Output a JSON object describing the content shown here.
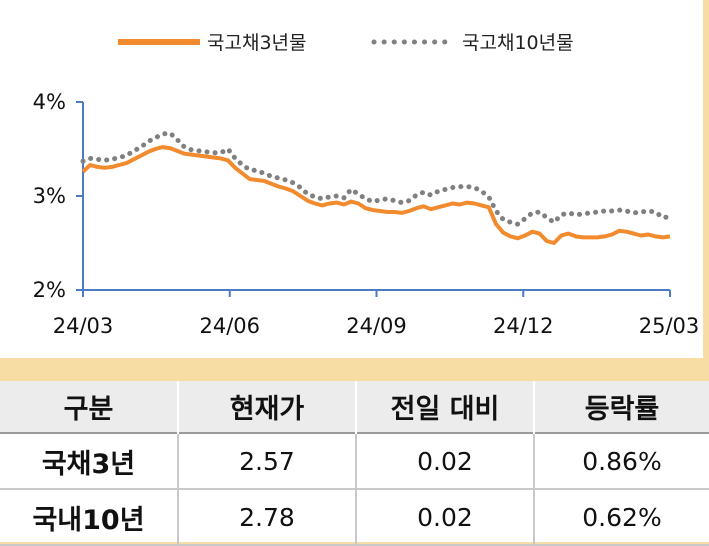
{
  "chart_data": {
    "type": "line",
    "x_ticks": [
      "24/03",
      "24/06",
      "24/09",
      "24/12",
      "25/03"
    ],
    "y_ticks": [
      "4%",
      "3%",
      "2%"
    ],
    "ylim": [
      2,
      4
    ],
    "legend_position": "top",
    "series": [
      {
        "name": "국고채3년물",
        "style": "solid",
        "color": "#f28a2e",
        "values": [
          3.26,
          3.33,
          3.31,
          3.3,
          3.31,
          3.33,
          3.35,
          3.39,
          3.43,
          3.47,
          3.5,
          3.52,
          3.51,
          3.48,
          3.45,
          3.44,
          3.43,
          3.42,
          3.41,
          3.4,
          3.38,
          3.3,
          3.24,
          3.18,
          3.17,
          3.16,
          3.13,
          3.1,
          3.08,
          3.05,
          3.0,
          2.95,
          2.92,
          2.9,
          2.92,
          2.93,
          2.91,
          2.94,
          2.92,
          2.87,
          2.85,
          2.84,
          2.83,
          2.83,
          2.82,
          2.84,
          2.87,
          2.89,
          2.86,
          2.88,
          2.9,
          2.92,
          2.91,
          2.93,
          2.92,
          2.9,
          2.88,
          2.7,
          2.61,
          2.57,
          2.55,
          2.58,
          2.62,
          2.6,
          2.52,
          2.5,
          2.58,
          2.6,
          2.57,
          2.56,
          2.56,
          2.56,
          2.57,
          2.59,
          2.63,
          2.62,
          2.6,
          2.58,
          2.59,
          2.57,
          2.56,
          2.57
        ]
      },
      {
        "name": "국고채10년물",
        "style": "dotted",
        "color": "#808080",
        "values": [
          3.37,
          3.4,
          3.39,
          3.38,
          3.39,
          3.41,
          3.43,
          3.48,
          3.52,
          3.58,
          3.62,
          3.66,
          3.67,
          3.6,
          3.52,
          3.49,
          3.48,
          3.47,
          3.46,
          3.46,
          3.5,
          3.4,
          3.33,
          3.28,
          3.27,
          3.24,
          3.21,
          3.19,
          3.17,
          3.14,
          3.09,
          3.02,
          2.99,
          2.97,
          2.99,
          3.0,
          2.98,
          3.07,
          3.02,
          2.97,
          2.94,
          2.96,
          2.97,
          2.95,
          2.93,
          2.95,
          3.01,
          3.04,
          3.01,
          3.05,
          3.07,
          3.09,
          3.1,
          3.1,
          3.09,
          3.05,
          2.99,
          2.84,
          2.75,
          2.72,
          2.7,
          2.76,
          2.82,
          2.83,
          2.77,
          2.72,
          2.8,
          2.82,
          2.8,
          2.81,
          2.82,
          2.83,
          2.84,
          2.84,
          2.85,
          2.84,
          2.82,
          2.83,
          2.84,
          2.83,
          2.77,
          2.78
        ]
      }
    ]
  },
  "table": {
    "headers": [
      "구분",
      "현재가",
      "전일 대비",
      "등락률"
    ],
    "rows": [
      [
        "국채3년",
        "2.57",
        "0.02",
        "0.86%"
      ],
      [
        "국내10년",
        "2.78",
        "0.02",
        "0.62%"
      ]
    ]
  }
}
